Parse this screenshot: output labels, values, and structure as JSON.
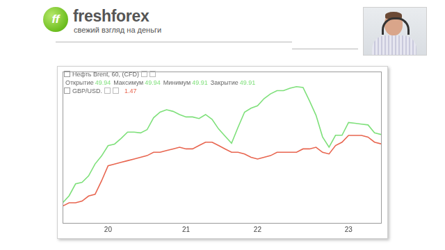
{
  "page": {
    "logo_mark": "ff",
    "logo": "freshforex",
    "slogan": "свежий взгляд на деньги"
  },
  "chart_data": {
    "type": "line",
    "categories": [
      null,
      null,
      null,
      null,
      null,
      null,
      null,
      "20",
      null,
      null,
      null,
      null,
      null,
      null,
      null,
      null,
      null,
      null,
      null,
      "21",
      null,
      null,
      null,
      null,
      null,
      null,
      null,
      null,
      null,
      null,
      "22",
      null,
      null,
      null,
      null,
      null,
      null,
      null,
      null,
      null,
      null,
      null,
      null,
      null,
      "23",
      null,
      null,
      null,
      null,
      null
    ],
    "series": [
      {
        "name": "Нефть Brent, 60, (CFD)",
        "color": "#7ee07a",
        "marker": "none",
        "line_style": "solid",
        "axis": "y",
        "readout": [
          {
            "label": "Открытие",
            "value": 49.94
          },
          {
            "label": "Максимум",
            "value": 49.94
          },
          {
            "label": "Минимум",
            "value": 49.91
          },
          {
            "label": "Закрытие",
            "value": 49.91
          }
        ],
        "values": [
          49.05,
          49.14,
          49.29,
          49.31,
          49.39,
          49.54,
          49.64,
          49.77,
          49.79,
          49.86,
          49.94,
          49.94,
          49.93,
          49.97,
          50.12,
          50.19,
          50.22,
          50.2,
          50.16,
          50.13,
          50.13,
          50.11,
          50.16,
          50.1,
          49.98,
          49.89,
          49.8,
          50.0,
          50.19,
          50.24,
          50.27,
          50.36,
          50.42,
          50.46,
          50.46,
          50.49,
          50.51,
          50.5,
          50.33,
          50.15,
          49.88,
          49.75,
          49.9,
          49.9,
          50.06,
          50.05,
          50.04,
          50.03,
          49.93,
          49.91
        ]
      },
      {
        "name": "GBP/USD.",
        "color": "#e8654f",
        "marker": "none",
        "line_style": "solid",
        "axis": "y2",
        "readout": [
          {
            "value": 1.47
          }
        ],
        "values": [
          1.43,
          1.432,
          1.432,
          1.433,
          1.436,
          1.437,
          1.445,
          1.454,
          1.455,
          1.456,
          1.457,
          1.458,
          1.459,
          1.46,
          1.462,
          1.462,
          1.463,
          1.464,
          1.465,
          1.464,
          1.464,
          1.466,
          1.468,
          1.468,
          1.466,
          1.464,
          1.462,
          1.462,
          1.461,
          1.459,
          1.458,
          1.459,
          1.46,
          1.462,
          1.462,
          1.462,
          1.462,
          1.464,
          1.464,
          1.465,
          1.462,
          1.461,
          1.466,
          1.468,
          1.472,
          1.472,
          1.472,
          1.471,
          1.468,
          1.467
        ]
      }
    ],
    "ylim": [
      48.8,
      50.7
    ],
    "y2lim": [
      1.42,
      1.51
    ],
    "grid": false,
    "tick_labels": "x"
  }
}
